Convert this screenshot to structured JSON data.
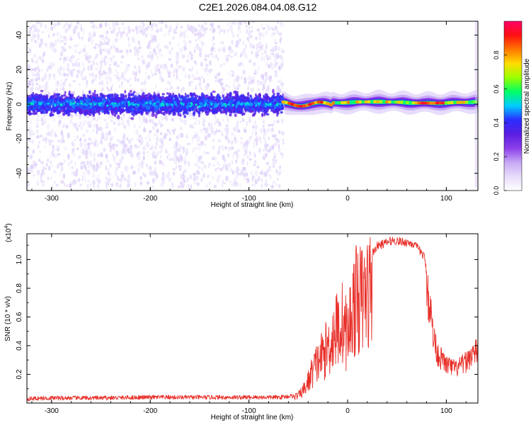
{
  "title": "C2E1.2026.084.04.08.G12",
  "colors": {
    "snr_line": "#e8302a",
    "frame": "#000000",
    "colormap": [
      "#ffffff",
      "#e6dcfb",
      "#c7a8f5",
      "#8c3fe9",
      "#5a1ee0",
      "#2c2cff",
      "#00ccff",
      "#00ff66",
      "#99ff00",
      "#ffdd00",
      "#ff7700",
      "#ff1111",
      "#ff0066"
    ]
  },
  "chart_data": [
    {
      "type": "heatmap",
      "title": "C2E1.2026.084.04.08.G12",
      "xlabel": "Height of straight line (km)",
      "ylabel": "Frequency (Hz)",
      "xlim": [
        -325,
        132
      ],
      "ylim": [
        -50,
        48
      ],
      "xticks": [
        -300,
        -200,
        -100,
        0,
        100
      ],
      "yticks": [
        -40,
        -20,
        0,
        20,
        40
      ],
      "x_tick_labels": [
        "-300",
        "-200",
        "-100",
        "0",
        "100"
      ],
      "y_tick_labels": [
        "-40",
        "-20",
        "0",
        "20",
        "40"
      ],
      "colorbar": {
        "label": "Normalized spectral amplitude",
        "range": [
          0,
          1
        ],
        "ticks": [
          0.0,
          0.2,
          0.4,
          0.6,
          0.8
        ],
        "tick_labels": [
          "0.0",
          "0.2",
          "0.4",
          "0.6",
          "0.8"
        ]
      },
      "regions": [
        {
          "name": "noisy-scatter",
          "x_range": [
            -325,
            -65
          ],
          "freq_spread_hz": 48,
          "core_band_hz": [
            -12,
            12
          ],
          "amplitude": 0.12
        },
        {
          "name": "transition",
          "x_range": [
            -65,
            -15
          ],
          "center_hz": 0,
          "amplitude": 0.8
        },
        {
          "name": "coherent-band",
          "x_range": [
            -15,
            132
          ],
          "center_hz": 1,
          "band_halfwidth_hz": 3,
          "amplitude": 0.6
        }
      ]
    },
    {
      "type": "line",
      "xlabel": "Height of straight line (km)",
      "ylabel": "SNR (10 * v/v)",
      "y_scale_label": "(x10",
      "y_scale_exp": "4",
      "y_scale_close": ")",
      "xlim": [
        -325,
        132
      ],
      "ylim": [
        0,
        1.18
      ],
      "xticks": [
        -300,
        -200,
        -100,
        0,
        100
      ],
      "yticks": [
        0.2,
        0.4,
        0.6,
        0.8,
        1.0
      ],
      "x_tick_labels": [
        "-300",
        "-200",
        "-100",
        "0",
        "100"
      ],
      "y_tick_labels": [
        "0.2",
        "0.4",
        "0.6",
        "0.8",
        "1.0"
      ],
      "series": [
        {
          "name": "SNR",
          "x": [
            -325,
            -300,
            -250,
            -200,
            -150,
            -100,
            -70,
            -55,
            -48,
            -42,
            -35,
            -28,
            -20,
            -12,
            -5,
            0,
            5,
            10,
            15,
            20,
            25,
            30,
            38,
            45,
            55,
            65,
            72,
            78,
            82,
            85,
            88,
            92,
            100,
            110,
            120,
            125,
            132
          ],
          "values": [
            0.03,
            0.035,
            0.035,
            0.04,
            0.04,
            0.04,
            0.04,
            0.05,
            0.08,
            0.15,
            0.3,
            0.4,
            0.5,
            0.65,
            0.72,
            0.6,
            0.85,
            0.95,
            0.92,
            1.0,
            1.05,
            1.1,
            1.12,
            1.14,
            1.13,
            1.12,
            1.08,
            1.02,
            0.8,
            0.6,
            0.45,
            0.35,
            0.28,
            0.25,
            0.3,
            0.35,
            0.38
          ]
        }
      ]
    }
  ]
}
